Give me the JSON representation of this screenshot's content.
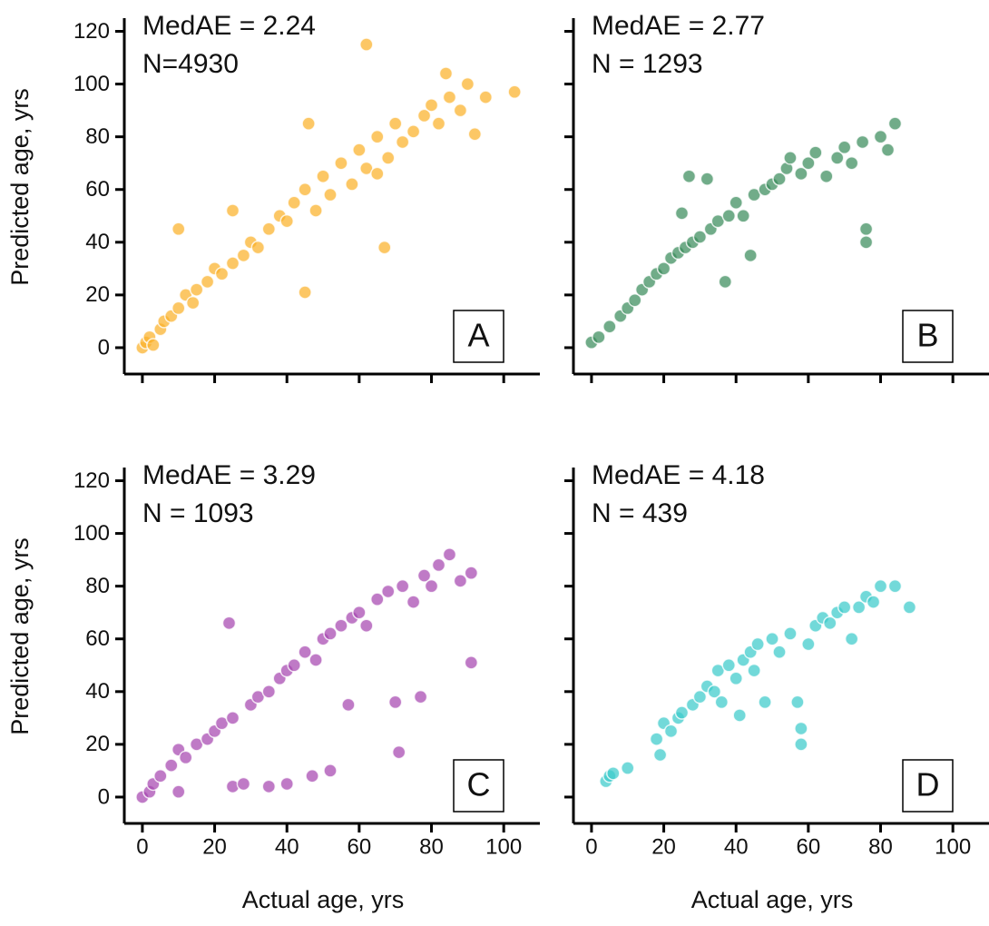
{
  "chart_data": [
    {
      "type": "scatter",
      "annotations": [
        "MedAE = 2.24",
        "N=4930"
      ],
      "panel_label": "A",
      "color": "#fbb12a",
      "ylabel": "Predicted age, yrs",
      "x": [
        0,
        1,
        2,
        3,
        5,
        6,
        8,
        10,
        10,
        12,
        14,
        15,
        18,
        20,
        22,
        25,
        25,
        28,
        30,
        32,
        35,
        38,
        40,
        42,
        45,
        48,
        50,
        52,
        55,
        58,
        60,
        62,
        62,
        65,
        67,
        68,
        70,
        72,
        75,
        78,
        80,
        82,
        84,
        85,
        88,
        90,
        92,
        95,
        103,
        46,
        65,
        45
      ],
      "y": [
        0,
        2,
        4,
        1,
        7,
        10,
        12,
        15,
        45,
        20,
        17,
        22,
        25,
        30,
        28,
        32,
        52,
        35,
        40,
        38,
        45,
        50,
        48,
        55,
        60,
        52,
        65,
        58,
        70,
        62,
        75,
        115,
        68,
        80,
        38,
        72,
        85,
        78,
        82,
        88,
        92,
        85,
        104,
        95,
        90,
        100,
        81,
        95,
        97,
        85,
        66,
        21
      ],
      "xlim": [
        -5,
        110
      ],
      "ylim": [
        -10,
        125
      ],
      "xticks": [
        0,
        20,
        40,
        60,
        80,
        100
      ],
      "yticks": [
        0,
        20,
        40,
        60,
        80,
        100,
        120
      ]
    },
    {
      "type": "scatter",
      "annotations": [
        "MedAE = 2.77",
        "N = 1293"
      ],
      "panel_label": "B",
      "color": "#3a8c5c",
      "x": [
        0,
        2,
        5,
        8,
        10,
        12,
        14,
        16,
        18,
        20,
        22,
        24,
        25,
        26,
        27,
        28,
        30,
        32,
        33,
        35,
        38,
        40,
        42,
        45,
        48,
        50,
        52,
        54,
        55,
        58,
        60,
        62,
        65,
        68,
        70,
        72,
        75,
        76,
        76,
        80,
        82,
        84,
        44,
        37
      ],
      "y": [
        2,
        4,
        8,
        12,
        15,
        18,
        22,
        25,
        28,
        30,
        34,
        36,
        51,
        38,
        65,
        40,
        42,
        64,
        45,
        48,
        50,
        55,
        50,
        58,
        60,
        62,
        64,
        68,
        72,
        66,
        70,
        74,
        65,
        72,
        76,
        70,
        78,
        40,
        45,
        80,
        75,
        85,
        35,
        25
      ],
      "xlim": [
        -5,
        110
      ],
      "ylim": [
        -10,
        125
      ],
      "xticks": [
        0,
        20,
        40,
        60,
        80,
        100
      ],
      "yticks": [
        0,
        20,
        40,
        60,
        80,
        100,
        120
      ]
    },
    {
      "type": "scatter",
      "annotations": [
        "MedAE = 3.29",
        "N = 1093"
      ],
      "panel_label": "C",
      "color": "#a646b0",
      "xlabel": "Actual age, yrs",
      "ylabel": "Predicted age, yrs",
      "x": [
        0,
        2,
        3,
        5,
        8,
        10,
        10,
        12,
        15,
        18,
        20,
        22,
        24,
        25,
        25,
        28,
        30,
        32,
        35,
        35,
        38,
        40,
        40,
        42,
        45,
        47,
        48,
        50,
        52,
        52,
        55,
        57,
        58,
        60,
        62,
        65,
        68,
        70,
        71,
        72,
        75,
        77,
        78,
        80,
        82,
        85,
        88,
        91,
        91
      ],
      "y": [
        0,
        2,
        5,
        8,
        12,
        2,
        18,
        15,
        20,
        22,
        25,
        28,
        66,
        4,
        30,
        5,
        35,
        38,
        4,
        40,
        45,
        5,
        48,
        50,
        55,
        8,
        52,
        60,
        10,
        62,
        65,
        35,
        68,
        70,
        65,
        75,
        78,
        36,
        17,
        80,
        74,
        38,
        84,
        80,
        88,
        92,
        82,
        51,
        85
      ],
      "xlim": [
        -5,
        110
      ],
      "ylim": [
        -10,
        125
      ],
      "xticks": [
        0,
        20,
        40,
        60,
        80,
        100
      ],
      "yticks": [
        0,
        20,
        40,
        60,
        80,
        100,
        120
      ]
    },
    {
      "type": "scatter",
      "annotations": [
        "MedAE = 4.18",
        "N = 439"
      ],
      "panel_label": "D",
      "color": "#3ccaca",
      "xlabel": "Actual age, yrs",
      "x": [
        4,
        5,
        6,
        10,
        18,
        19,
        20,
        22,
        24,
        25,
        28,
        30,
        32,
        34,
        35,
        36,
        38,
        40,
        42,
        44,
        45,
        46,
        48,
        50,
        52,
        55,
        57,
        58,
        58,
        60,
        62,
        64,
        66,
        68,
        70,
        72,
        74,
        76,
        78,
        80,
        84,
        88,
        41
      ],
      "y": [
        6,
        8,
        9,
        11,
        22,
        16,
        28,
        25,
        30,
        32,
        35,
        38,
        42,
        40,
        48,
        36,
        50,
        45,
        52,
        55,
        48,
        58,
        36,
        60,
        55,
        62,
        36,
        26,
        20,
        58,
        65,
        68,
        66,
        70,
        72,
        60,
        72,
        76,
        74,
        80,
        80,
        72,
        31
      ],
      "xlim": [
        -5,
        110
      ],
      "ylim": [
        -10,
        125
      ],
      "xticks": [
        0,
        20,
        40,
        60,
        80,
        100
      ],
      "yticks": [
        0,
        20,
        40,
        60,
        80,
        100,
        120
      ]
    }
  ]
}
